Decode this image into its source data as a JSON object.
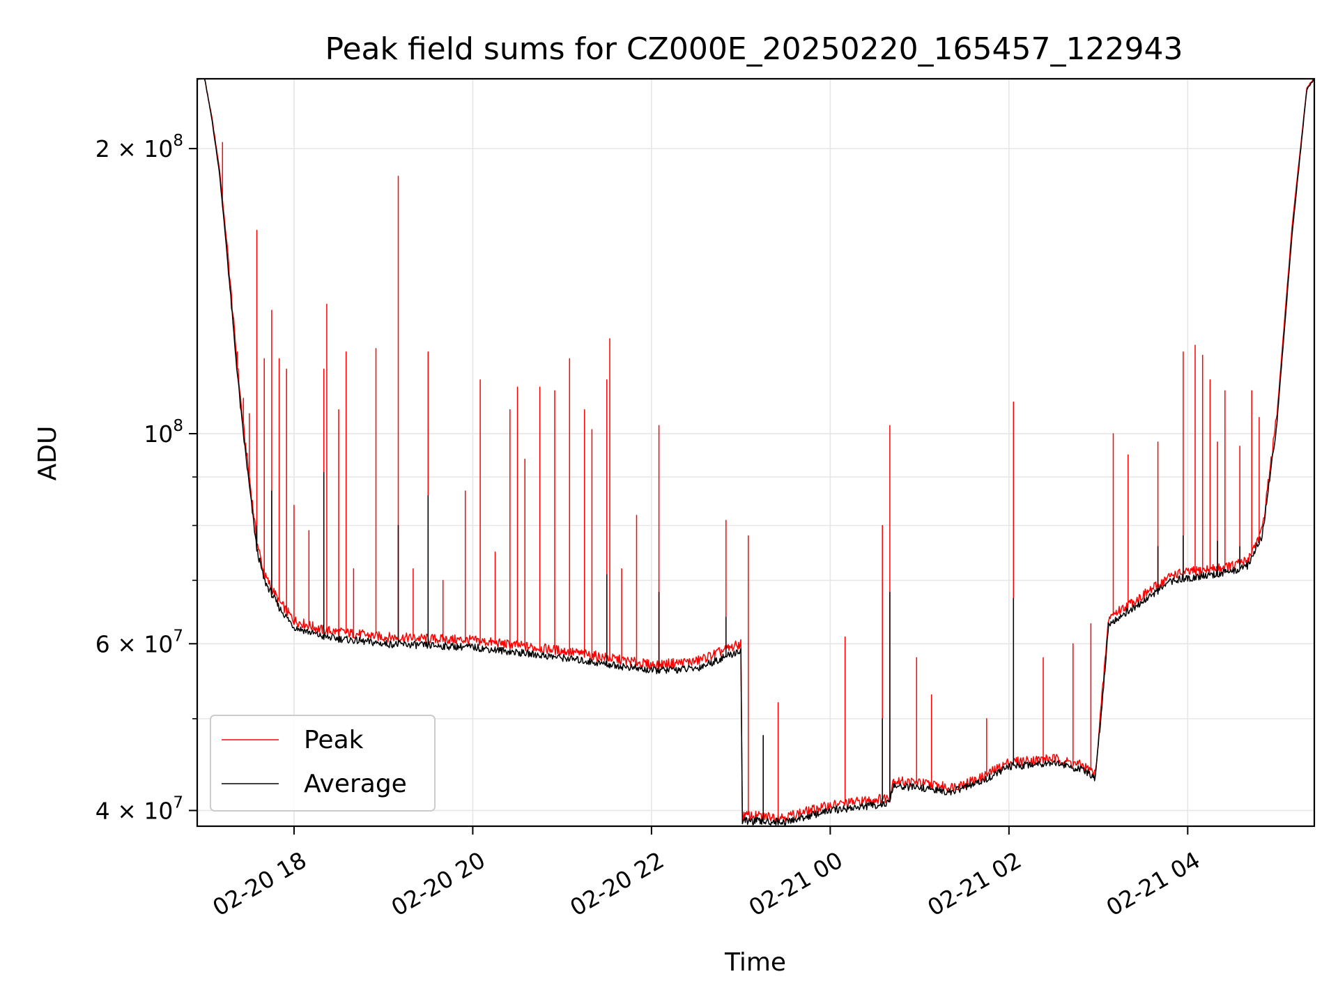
{
  "chart_data": {
    "type": "line",
    "title": "Peak field sums for CZ000E_20250220_165457_122943",
    "xlabel": "Time",
    "ylabel": "ADU",
    "yscale": "log",
    "ylim": [
      38500000,
      237000000
    ],
    "xlim": [
      "2025-02-20 16:55",
      "2025-02-21 05:25"
    ],
    "grid": true,
    "legend_position": "lower-left",
    "x_ticks": [
      {
        "t": "2025-02-20 18:00",
        "label": "02-20 18"
      },
      {
        "t": "2025-02-20 20:00",
        "label": "02-20 20"
      },
      {
        "t": "2025-02-20 22:00",
        "label": "02-20 22"
      },
      {
        "t": "2025-02-21 00:00",
        "label": "02-21 00"
      },
      {
        "t": "2025-02-21 02:00",
        "label": "02-21 02"
      },
      {
        "t": "2025-02-21 04:00",
        "label": "02-21 04"
      }
    ],
    "y_ticks": [
      {
        "value": 40000000,
        "base": "4 × 10",
        "exp": "7"
      },
      {
        "value": 60000000,
        "base": "6 × 10",
        "exp": "7"
      },
      {
        "value": 100000000,
        "base": "10",
        "exp": "8"
      },
      {
        "value": 200000000,
        "base": "2 × 10",
        "exp": "8"
      }
    ],
    "y_minor": [
      50000000,
      70000000,
      80000000,
      90000000
    ],
    "series": [
      {
        "name": "Peak",
        "color": "#ff0000",
        "baseline": [
          [
            "2025-02-20 16:55",
            237000000
          ],
          [
            "2025-02-20 17:00",
            237000000
          ],
          [
            "2025-02-20 17:05",
            215000000
          ],
          [
            "2025-02-20 17:10",
            190000000
          ],
          [
            "2025-02-20 17:15",
            158000000
          ],
          [
            "2025-02-20 17:20",
            128000000
          ],
          [
            "2025-02-20 17:25",
            105000000
          ],
          [
            "2025-02-20 17:30",
            90000000
          ],
          [
            "2025-02-20 17:35",
            77000000
          ],
          [
            "2025-02-20 17:40",
            71000000
          ],
          [
            "2025-02-20 17:50",
            66500000
          ],
          [
            "2025-02-20 18:00",
            63500000
          ],
          [
            "2025-02-20 18:20",
            62000000
          ],
          [
            "2025-02-20 19:00",
            61000000
          ],
          [
            "2025-02-20 20:00",
            60500000
          ],
          [
            "2025-02-20 21:00",
            59000000
          ],
          [
            "2025-02-20 22:00",
            57000000
          ],
          [
            "2025-02-20 22:30",
            57500000
          ],
          [
            "2025-02-20 23:00",
            60000000
          ],
          [
            "2025-02-20 23:01",
            39500000
          ],
          [
            "2025-02-20 23:30",
            39400000
          ],
          [
            "2025-02-21 00:00",
            40500000
          ],
          [
            "2025-02-21 00:40",
            41300000
          ],
          [
            "2025-02-21 00:42",
            43000000
          ],
          [
            "2025-02-21 01:00",
            42800000
          ],
          [
            "2025-02-21 01:20",
            42300000
          ],
          [
            "2025-02-21 01:40",
            43200000
          ],
          [
            "2025-02-21 02:00",
            45000000
          ],
          [
            "2025-02-21 02:30",
            45400000
          ],
          [
            "2025-02-21 02:50",
            44600000
          ],
          [
            "2025-02-21 02:58",
            43700000
          ],
          [
            "2025-02-21 03:03",
            54000000
          ],
          [
            "2025-02-21 03:07",
            64000000
          ],
          [
            "2025-02-21 03:30",
            67500000
          ],
          [
            "2025-02-21 03:50",
            71000000
          ],
          [
            "2025-02-21 04:30",
            72500000
          ],
          [
            "2025-02-21 04:40",
            73500000
          ],
          [
            "2025-02-21 04:50",
            79000000
          ],
          [
            "2025-02-21 05:00",
            105000000
          ],
          [
            "2025-02-21 05:10",
            165000000
          ],
          [
            "2025-02-21 05:20",
            232000000
          ],
          [
            "2025-02-21 05:25",
            237000000
          ]
        ],
        "spikes": [
          [
            "2025-02-20 17:12",
            203000000
          ],
          [
            "2025-02-20 17:22",
            122000000
          ],
          [
            "2025-02-20 17:26",
            109000000
          ],
          [
            "2025-02-20 17:30",
            105000000
          ],
          [
            "2025-02-20 17:35",
            164000000
          ],
          [
            "2025-02-20 17:40",
            120000000
          ],
          [
            "2025-02-20 17:45",
            135000000
          ],
          [
            "2025-02-20 17:50",
            120000000
          ],
          [
            "2025-02-20 17:55",
            117000000
          ],
          [
            "2025-02-20 18:00",
            84000000
          ],
          [
            "2025-02-20 18:10",
            79000000
          ],
          [
            "2025-02-20 18:20",
            117000000
          ],
          [
            "2025-02-20 18:22",
            137000000
          ],
          [
            "2025-02-20 18:30",
            106000000
          ],
          [
            "2025-02-20 18:35",
            122000000
          ],
          [
            "2025-02-20 18:40",
            72000000
          ],
          [
            "2025-02-20 18:55",
            123000000
          ],
          [
            "2025-02-20 19:10",
            187000000
          ],
          [
            "2025-02-20 19:20",
            72000000
          ],
          [
            "2025-02-20 19:30",
            122000000
          ],
          [
            "2025-02-20 19:40",
            70000000
          ],
          [
            "2025-02-20 19:55",
            87000000
          ],
          [
            "2025-02-20 20:05",
            114000000
          ],
          [
            "2025-02-20 20:15",
            75000000
          ],
          [
            "2025-02-20 20:25",
            106000000
          ],
          [
            "2025-02-20 20:30",
            112000000
          ],
          [
            "2025-02-20 20:35",
            94000000
          ],
          [
            "2025-02-20 20:45",
            112000000
          ],
          [
            "2025-02-20 20:55",
            111000000
          ],
          [
            "2025-02-20 21:05",
            120000000
          ],
          [
            "2025-02-20 21:15",
            106000000
          ],
          [
            "2025-02-20 21:20",
            101000000
          ],
          [
            "2025-02-20 21:30",
            114000000
          ],
          [
            "2025-02-20 21:32",
            126000000
          ],
          [
            "2025-02-20 21:40",
            72000000
          ],
          [
            "2025-02-20 21:50",
            82000000
          ],
          [
            "2025-02-20 22:05",
            102000000
          ],
          [
            "2025-02-20 22:50",
            81000000
          ],
          [
            "2025-02-20 23:05",
            78000000
          ],
          [
            "2025-02-20 23:15",
            48000000
          ],
          [
            "2025-02-20 23:25",
            52000000
          ],
          [
            "2025-02-21 00:10",
            61000000
          ],
          [
            "2025-02-21 00:35",
            80000000
          ],
          [
            "2025-02-21 00:40",
            102000000
          ],
          [
            "2025-02-21 00:58",
            58000000
          ],
          [
            "2025-02-21 01:08",
            53000000
          ],
          [
            "2025-02-21 01:45",
            50000000
          ],
          [
            "2025-02-21 02:03",
            108000000
          ],
          [
            "2025-02-21 02:23",
            58000000
          ],
          [
            "2025-02-21 02:43",
            60000000
          ],
          [
            "2025-02-21 02:55",
            63000000
          ],
          [
            "2025-02-21 03:10",
            100000000
          ],
          [
            "2025-02-21 03:20",
            95000000
          ],
          [
            "2025-02-21 03:40",
            98000000
          ],
          [
            "2025-02-21 03:57",
            122000000
          ],
          [
            "2025-02-21 04:05",
            124000000
          ],
          [
            "2025-02-21 04:10",
            121000000
          ],
          [
            "2025-02-21 04:15",
            114000000
          ],
          [
            "2025-02-21 04:20",
            98000000
          ],
          [
            "2025-02-21 04:25",
            111000000
          ],
          [
            "2025-02-21 04:35",
            97000000
          ],
          [
            "2025-02-21 04:43",
            111000000
          ],
          [
            "2025-02-21 04:48",
            104000000
          ]
        ]
      },
      {
        "name": "Average",
        "color": "#000000",
        "baseline": [
          [
            "2025-02-20 16:55",
            237000000
          ],
          [
            "2025-02-20 17:00",
            237000000
          ],
          [
            "2025-02-20 17:05",
            214000000
          ],
          [
            "2025-02-20 17:10",
            188000000
          ],
          [
            "2025-02-20 17:15",
            155000000
          ],
          [
            "2025-02-20 17:20",
            125000000
          ],
          [
            "2025-02-20 17:25",
            103000000
          ],
          [
            "2025-02-20 17:30",
            88000000
          ],
          [
            "2025-02-20 17:35",
            75500000
          ],
          [
            "2025-02-20 17:40",
            70000000
          ],
          [
            "2025-02-20 17:50",
            65500000
          ],
          [
            "2025-02-20 18:00",
            62500000
          ],
          [
            "2025-02-20 18:20",
            61000000
          ],
          [
            "2025-02-20 19:00",
            60000000
          ],
          [
            "2025-02-20 20:00",
            59500000
          ],
          [
            "2025-02-20 21:00",
            58000000
          ],
          [
            "2025-02-20 22:00",
            56200000
          ],
          [
            "2025-02-20 22:30",
            56500000
          ],
          [
            "2025-02-20 23:00",
            59000000
          ],
          [
            "2025-02-20 23:01",
            39000000
          ],
          [
            "2025-02-20 23:30",
            38900000
          ],
          [
            "2025-02-21 00:00",
            40000000
          ],
          [
            "2025-02-21 00:40",
            40700000
          ],
          [
            "2025-02-21 00:42",
            42400000
          ],
          [
            "2025-02-21 01:00",
            42300000
          ],
          [
            "2025-02-21 01:20",
            41800000
          ],
          [
            "2025-02-21 01:40",
            42800000
          ],
          [
            "2025-02-21 02:00",
            44500000
          ],
          [
            "2025-02-21 02:30",
            45000000
          ],
          [
            "2025-02-21 02:50",
            44100000
          ],
          [
            "2025-02-21 02:58",
            43200000
          ],
          [
            "2025-02-21 03:03",
            53000000
          ],
          [
            "2025-02-21 03:07",
            63000000
          ],
          [
            "2025-02-21 03:30",
            66500000
          ],
          [
            "2025-02-21 03:50",
            70000000
          ],
          [
            "2025-02-21 04:30",
            71500000
          ],
          [
            "2025-02-21 04:40",
            72500000
          ],
          [
            "2025-02-21 04:50",
            78000000
          ],
          [
            "2025-02-21 05:00",
            103000000
          ],
          [
            "2025-02-21 05:10",
            162000000
          ],
          [
            "2025-02-21 05:20",
            231000000
          ],
          [
            "2025-02-21 05:25",
            237000000
          ]
        ],
        "spikes": [
          [
            "2025-02-20 17:35",
            80000000
          ],
          [
            "2025-02-20 17:45",
            87000000
          ],
          [
            "2025-02-20 18:20",
            91000000
          ],
          [
            "2025-02-20 19:10",
            80000000
          ],
          [
            "2025-02-20 19:30",
            86000000
          ],
          [
            "2025-02-20 21:30",
            71000000
          ],
          [
            "2025-02-20 22:05",
            68000000
          ],
          [
            "2025-02-20 22:50",
            64000000
          ],
          [
            "2025-02-20 23:15",
            48000000
          ],
          [
            "2025-02-21 00:35",
            50000000
          ],
          [
            "2025-02-21 00:40",
            68000000
          ],
          [
            "2025-02-21 02:03",
            67000000
          ],
          [
            "2025-02-21 03:40",
            76000000
          ],
          [
            "2025-02-21 03:57",
            78000000
          ],
          [
            "2025-02-21 04:20",
            77000000
          ],
          [
            "2025-02-21 04:35",
            76000000
          ]
        ]
      }
    ]
  }
}
